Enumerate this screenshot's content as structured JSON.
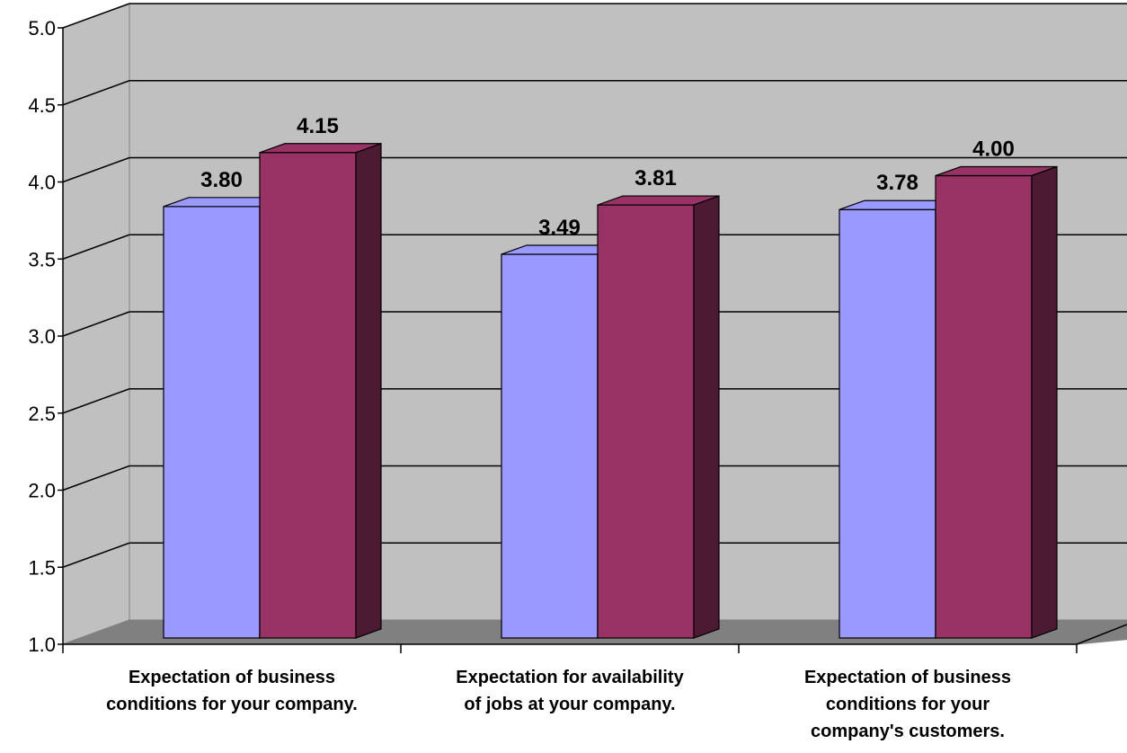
{
  "chart_data": {
    "type": "bar",
    "title": "",
    "xlabel": "",
    "ylabel": "",
    "ylim": [
      1.0,
      5.0
    ],
    "yticks": [
      "1.0",
      "1.5",
      "2.0",
      "2.5",
      "3.0",
      "3.5",
      "4.0",
      "4.5",
      "5.0"
    ],
    "categories": [
      [
        "Expectation of business",
        "conditions for your company."
      ],
      [
        "Expectation for availability",
        "of jobs at your company."
      ],
      [
        "Expectation of business",
        "conditions for your",
        "company's customers."
      ]
    ],
    "series": [
      {
        "values": [
          3.8,
          3.49,
          3.78
        ],
        "labels": [
          "3.80",
          "3.49",
          "3.78"
        ],
        "color": "#9999ff"
      },
      {
        "values": [
          4.15,
          3.81,
          4.0
        ],
        "labels": [
          "4.15",
          "3.81",
          "4.00"
        ],
        "color": "#993366"
      }
    ],
    "grid": true,
    "legend": "none",
    "style": "3d-clustered-column"
  }
}
